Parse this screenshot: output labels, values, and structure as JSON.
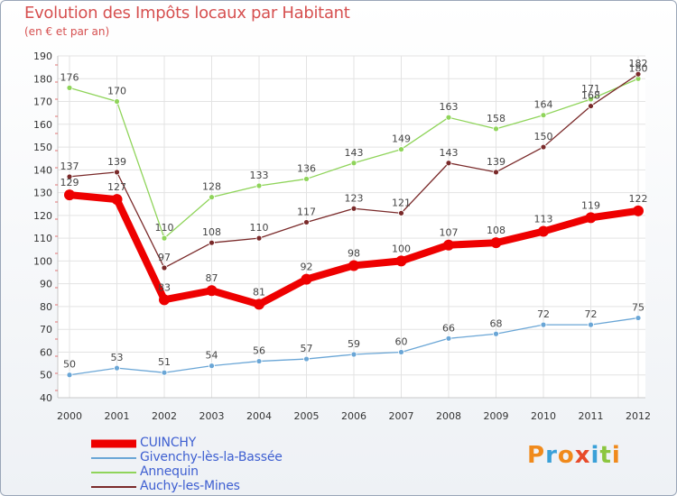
{
  "chart_data": {
    "type": "line",
    "title": "Evolution des Impôts locaux par Habitant",
    "subtitle": "(en € et par an)",
    "xlabel": "",
    "ylabel": "",
    "ylim": [
      40,
      190
    ],
    "yticks": [
      40,
      50,
      60,
      70,
      80,
      90,
      100,
      110,
      120,
      130,
      140,
      150,
      160,
      170,
      180,
      190
    ],
    "x": [
      "2000",
      "2001",
      "2002",
      "2003",
      "2004",
      "2005",
      "2006",
      "2007",
      "2008",
      "2009",
      "2010",
      "2011",
      "2012"
    ],
    "grid": true,
    "series": [
      {
        "name": "Annequin",
        "color": "#8fd45a",
        "values": [
          176,
          170,
          110,
          128,
          133,
          136,
          143,
          149,
          163,
          158,
          164,
          171,
          180
        ]
      },
      {
        "name": "Auchy-les-Mines",
        "color": "#7a2a2a",
        "values": [
          137,
          139,
          97,
          108,
          110,
          117,
          123,
          121,
          143,
          139,
          150,
          168,
          182
        ]
      },
      {
        "name": "Givenchy-lès-la-Bassée",
        "color": "#6aa6d6",
        "values": [
          50,
          53,
          51,
          54,
          56,
          57,
          59,
          60,
          66,
          68,
          72,
          72,
          75
        ]
      },
      {
        "name": "CUINCHY",
        "color": "#ee0000",
        "values": [
          129,
          127,
          83,
          87,
          81,
          92,
          98,
          100,
          107,
          108,
          113,
          119,
          122
        ]
      }
    ],
    "legend": [
      "CUINCHY",
      "Givenchy-lès-la-Bassée",
      "Annequin",
      "Auchy-les-Mines"
    ]
  },
  "brand": {
    "text": "Proxiti",
    "letters": [
      "P",
      "r",
      "o",
      "x",
      "i",
      "t",
      "i"
    ],
    "colors": [
      "#f08a1c",
      "#3aa0d8",
      "#f08a1c",
      "#e84a2a",
      "#3aa0d8",
      "#8cc63f",
      "#f08a1c"
    ]
  }
}
